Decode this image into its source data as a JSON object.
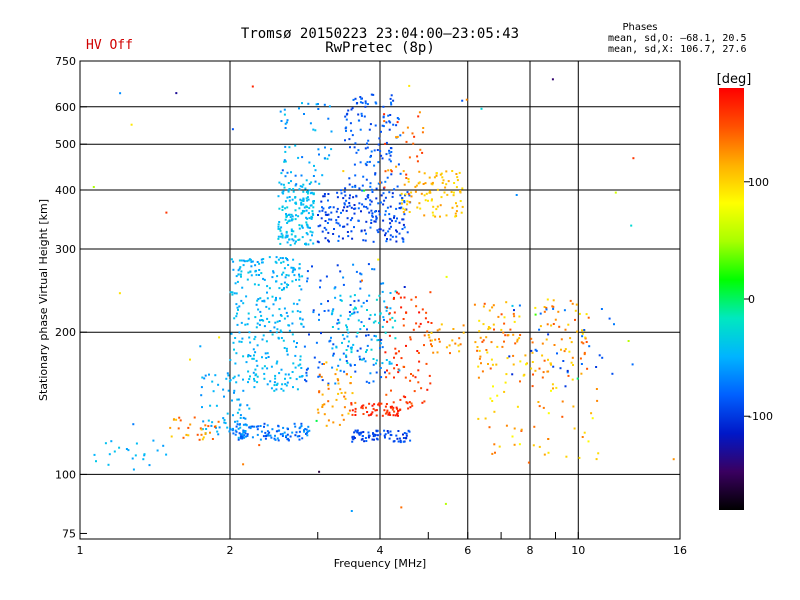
{
  "header": {
    "title_line1": "Tromsø 20150223 23:04:00–23:05:43",
    "title_line2": "RwPretec (8p)",
    "status": "HV Off",
    "phases_heading": "Phases",
    "phase_o": "mean, sd,O: –68.1, 20.5",
    "phase_x": "mean, sd,X: 106.7, 27.6"
  },
  "colors": {
    "status": "#d00000",
    "grid": "#000000"
  },
  "chart_data": {
    "type": "scatter",
    "title": "Tromsø 20150223 23:04:00–23:05:43",
    "subtitle": "RwPretec (8p)",
    "xlabel": "Frequency [MHz]",
    "ylabel": "Stationary phase Virtual Height [km]",
    "xscale": "log",
    "yscale": "log",
    "xlim": [
      1,
      16
    ],
    "ylim": [
      73,
      750
    ],
    "x_ticks": [
      {
        "v": 1,
        "label": "1",
        "grid": false
      },
      {
        "v": 2,
        "label": "2",
        "grid": true
      },
      {
        "v": 3,
        "label": "",
        "grid": false
      },
      {
        "v": 4,
        "label": "4",
        "grid": true
      },
      {
        "v": 5,
        "label": "",
        "grid": false
      },
      {
        "v": 6,
        "label": "6",
        "grid": true
      },
      {
        "v": 7,
        "label": "",
        "grid": false
      },
      {
        "v": 8,
        "label": "8",
        "grid": true
      },
      {
        "v": 9,
        "label": "",
        "grid": false
      },
      {
        "v": 10,
        "label": "10",
        "grid": true
      },
      {
        "v": 16,
        "label": "16",
        "grid": false
      }
    ],
    "y_ticks": [
      {
        "v": 75,
        "label": "75",
        "grid": false
      },
      {
        "v": 100,
        "label": "100",
        "grid": true
      },
      {
        "v": 200,
        "label": "200",
        "grid": true
      },
      {
        "v": 300,
        "label": "300",
        "grid": true
      },
      {
        "v": 400,
        "label": "400",
        "grid": true
      },
      {
        "v": 500,
        "label": "500",
        "grid": true
      },
      {
        "v": 600,
        "label": "600",
        "grid": true
      },
      {
        "v": 750,
        "label": "750",
        "grid": false
      }
    ],
    "grid": true,
    "colorbar": {
      "label": "[deg]",
      "range": [
        -180,
        180
      ],
      "ticks": [
        100,
        0,
        -100
      ],
      "stops": [
        "#000000",
        "#3a0060",
        "#0018c8",
        "#0060ff",
        "#00b4ff",
        "#00e8c0",
        "#00ff00",
        "#a8ff00",
        "#ffff00",
        "#ffb000",
        "#ff5000",
        "#ff0000"
      ]
    },
    "clusters": [
      {
        "xr": [
          2.5,
          2.95
        ],
        "yr": [
          305,
          420
        ],
        "n": 170,
        "phase": [
          -55,
          -30
        ]
      },
      {
        "xr": [
          3.0,
          4.6
        ],
        "yr": [
          310,
          400
        ],
        "n": 200,
        "phase": [
          -110,
          -75
        ]
      },
      {
        "xr": [
          3.4,
          4.4
        ],
        "yr": [
          400,
          640
        ],
        "n": 130,
        "phase": [
          -100,
          -70
        ]
      },
      {
        "xr": [
          2.5,
          3.2
        ],
        "yr": [
          410,
          620
        ],
        "n": 55,
        "phase": [
          -75,
          -35
        ]
      },
      {
        "xr": [
          4.4,
          5.9
        ],
        "yr": [
          350,
          440
        ],
        "n": 90,
        "phase": [
          90,
          125
        ]
      },
      {
        "xr": [
          4.0,
          5.0
        ],
        "yr": [
          390,
          620
        ],
        "n": 35,
        "phase": [
          115,
          165
        ]
      },
      {
        "xr": [
          2.0,
          2.8
        ],
        "yr": [
          150,
          290
        ],
        "n": 300,
        "phase": [
          -60,
          -35
        ]
      },
      {
        "xr": [
          1.75,
          2.2
        ],
        "yr": [
          118,
          165
        ],
        "n": 70,
        "phase": [
          -65,
          -40
        ]
      },
      {
        "xr": [
          2.0,
          2.9
        ],
        "yr": [
          118,
          128
        ],
        "n": 110,
        "phase": [
          -95,
          -55
        ]
      },
      {
        "xr": [
          1.5,
          1.9
        ],
        "yr": [
          118,
          132
        ],
        "n": 30,
        "phase": [
          100,
          150
        ]
      },
      {
        "xr": [
          1.05,
          1.5
        ],
        "yr": [
          102,
          118
        ],
        "n": 22,
        "phase": [
          -60,
          -35
        ]
      },
      {
        "xr": [
          2.8,
          4.1
        ],
        "yr": [
          155,
          280
        ],
        "n": 110,
        "phase": [
          -100,
          -60
        ]
      },
      {
        "xr": [
          3.2,
          4.3
        ],
        "yr": [
          170,
          250
        ],
        "n": 90,
        "phase": [
          -55,
          -25
        ]
      },
      {
        "xr": [
          4.1,
          5.1
        ],
        "yr": [
          135,
          245
        ],
        "n": 90,
        "phase": [
          140,
          175
        ]
      },
      {
        "xr": [
          3.5,
          4.4
        ],
        "yr": [
          133,
          142
        ],
        "n": 55,
        "phase": [
          150,
          175
        ]
      },
      {
        "xr": [
          3.5,
          4.6
        ],
        "yr": [
          117,
          124
        ],
        "n": 75,
        "phase": [
          -110,
          -80
        ]
      },
      {
        "xr": [
          3.0,
          3.6
        ],
        "yr": [
          125,
          175
        ],
        "n": 45,
        "phase": [
          100,
          140
        ]
      },
      {
        "xr": [
          5.0,
          5.9
        ],
        "yr": [
          180,
          210
        ],
        "n": 25,
        "phase": [
          100,
          140
        ]
      },
      {
        "xr": [
          6.2,
          10.5
        ],
        "yr": [
          160,
          235
        ],
        "n": 130,
        "phase": [
          90,
          150
        ]
      },
      {
        "xr": [
          6.5,
          11.0
        ],
        "yr": [
          105,
          175
        ],
        "n": 65,
        "phase": [
          80,
          150
        ]
      },
      {
        "xr": [
          7.0,
          12.0
        ],
        "yr": [
          150,
          230
        ],
        "n": 30,
        "phase": [
          -110,
          -70
        ]
      },
      {
        "xr": [
          1.0,
          16.0
        ],
        "yr": [
          80,
          700
        ],
        "n": 45,
        "phase": [
          -160,
          170
        ]
      }
    ]
  }
}
